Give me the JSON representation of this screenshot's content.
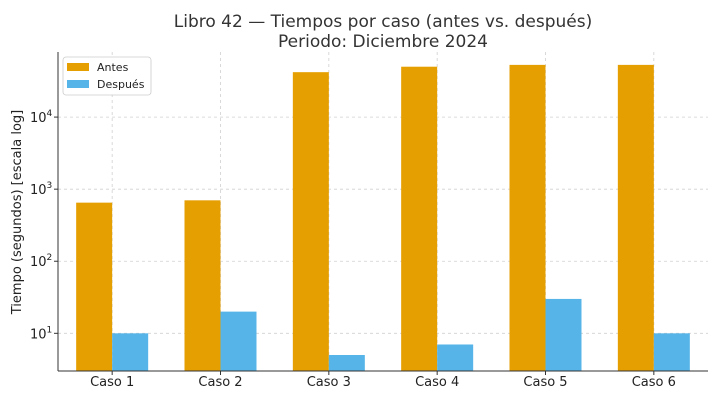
{
  "chart_data": {
    "type": "bar",
    "title": "Libro 42 — Tiempos por caso (antes vs. después)",
    "subtitle": "Periodo: Diciembre 2024",
    "xlabel": "",
    "ylabel": "Tiempo (segundos) [escala log]",
    "yscale": "log",
    "ylim": [
      3,
      80000
    ],
    "yticks": [
      {
        "value": 10,
        "base": "10",
        "exp": "1"
      },
      {
        "value": 100,
        "base": "10",
        "exp": "2"
      },
      {
        "value": 1000,
        "base": "10",
        "exp": "3"
      },
      {
        "value": 10000,
        "base": "10",
        "exp": "4"
      }
    ],
    "categories": [
      "Caso 1",
      "Caso 2",
      "Caso 3",
      "Caso 4",
      "Caso 5",
      "Caso 6"
    ],
    "series": [
      {
        "name": "Antes",
        "color": "#E69F00",
        "values": [
          650,
          700,
          42000,
          50000,
          53000,
          53000
        ]
      },
      {
        "name": "Después",
        "color": "#56B4E9",
        "values": [
          10,
          20,
          5,
          7,
          30,
          10
        ]
      }
    ],
    "grid": true,
    "legend_position": "top-left"
  }
}
